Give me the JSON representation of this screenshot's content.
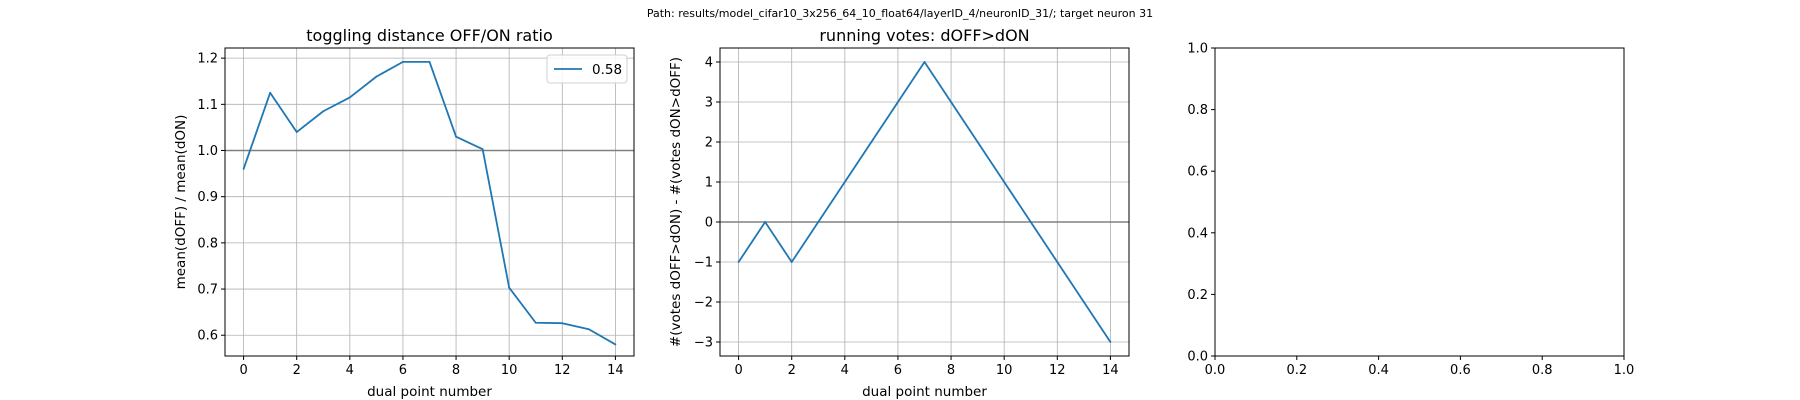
{
  "figure": {
    "suptitle": "Path: results/model_cifar10_3x256_64_10_float64/layerID_4/neuronID_31/; target neuron 31"
  },
  "colors": {
    "series": "#1f77b4",
    "refline": "#808080",
    "grid": "#b0b0b0"
  },
  "chart_data": [
    {
      "type": "line",
      "title": "toggling distance OFF/ON ratio",
      "xlabel": "dual point number",
      "ylabel": "mean(dOFF) / mean(dON)",
      "xlim": [
        -0.7,
        14.7
      ],
      "ylim": [
        0.555,
        1.222
      ],
      "xticks": [
        0,
        2,
        4,
        6,
        8,
        10,
        12,
        14
      ],
      "yticks": [
        0.6,
        0.7,
        0.8,
        0.9,
        1.0,
        1.1,
        1.2
      ],
      "grid": true,
      "hline": 1.0,
      "legend": {
        "placement": "upper right",
        "entries": [
          "0.58"
        ]
      },
      "series": [
        {
          "name": "0.58",
          "x": [
            0,
            1,
            2,
            3,
            4,
            5,
            6,
            7,
            8,
            9,
            10,
            11,
            12,
            13,
            14
          ],
          "y": [
            0.96,
            1.125,
            1.04,
            1.085,
            1.115,
            1.16,
            1.192,
            1.192,
            1.03,
            1.003,
            0.703,
            0.627,
            0.626,
            0.613,
            0.58
          ]
        }
      ]
    },
    {
      "type": "line",
      "title": "running votes: dOFF>dON",
      "xlabel": "dual point number",
      "ylabel": "#(votes dOFF>dON) - #(votes dON>dOFF)",
      "xlim": [
        -0.7,
        14.7
      ],
      "ylim": [
        -3.35,
        4.35
      ],
      "xticks": [
        0,
        2,
        4,
        6,
        8,
        10,
        12,
        14
      ],
      "yticks": [
        -3,
        -2,
        -1,
        0,
        1,
        2,
        3,
        4
      ],
      "grid": true,
      "hline": 0,
      "series": [
        {
          "x": [
            0,
            1,
            2,
            3,
            4,
            5,
            6,
            7,
            8,
            9,
            10,
            11,
            12,
            13,
            14
          ],
          "y": [
            -1,
            0,
            -1,
            0,
            1,
            2,
            3,
            4,
            3,
            2,
            1,
            0,
            -1,
            -2,
            -3
          ]
        }
      ]
    },
    {
      "type": "line",
      "title": "",
      "xlabel": "",
      "ylabel": "",
      "xlim": [
        0,
        1
      ],
      "ylim": [
        0,
        1
      ],
      "xticks": [
        0.0,
        0.2,
        0.4,
        0.6,
        0.8,
        1.0
      ],
      "yticks": [
        0.0,
        0.2,
        0.4,
        0.6,
        0.8,
        1.0
      ],
      "grid": false,
      "series": []
    }
  ]
}
